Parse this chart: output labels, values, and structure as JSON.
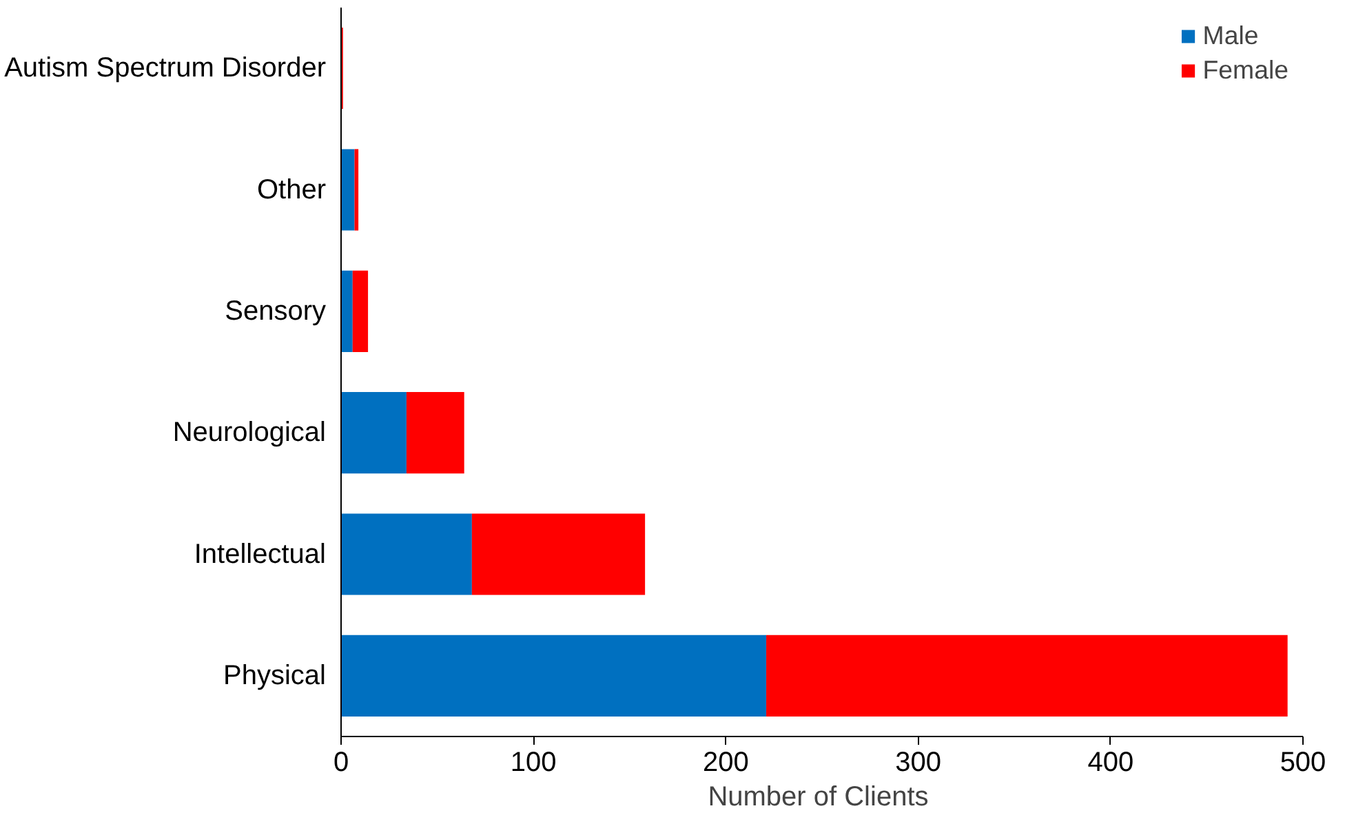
{
  "chart_data": {
    "type": "bar",
    "orientation": "horizontal",
    "stacked": true,
    "categories": [
      "Autism Spectrum Disorder",
      "Other",
      "Sensory",
      "Neurological",
      "Intellectual",
      "Physical"
    ],
    "series": [
      {
        "name": "Male",
        "color": "#0070c0",
        "values": [
          0,
          7,
          6,
          34,
          68,
          221
        ]
      },
      {
        "name": "Female",
        "color": "#ff0000",
        "values": [
          1,
          2,
          8,
          30,
          90,
          271
        ]
      }
    ],
    "xlabel": "Number  of Clients",
    "xlim": [
      0,
      500
    ],
    "xticks": [
      0,
      100,
      200,
      300,
      400,
      500
    ],
    "grid": false,
    "legend": "top right"
  }
}
